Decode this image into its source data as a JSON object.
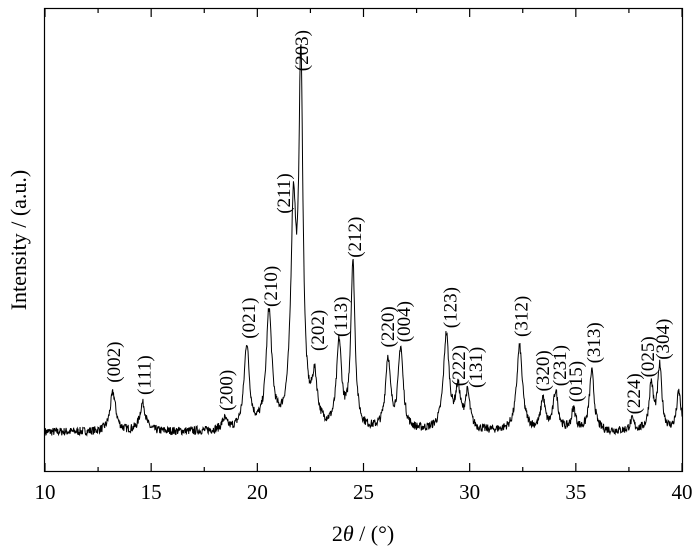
{
  "chart_data": {
    "type": "line",
    "title": "",
    "xlabel": {
      "prefix": "2",
      "symbol": "θ",
      "suffix": " / (°)"
    },
    "ylabel": "Intensity / (a.u.)",
    "xlim": [
      10,
      40
    ],
    "ylim": [
      0,
      100
    ],
    "y_ticks_labeled": false,
    "grid": false,
    "legend": "none",
    "x_ticks": [
      10,
      15,
      20,
      25,
      30,
      35,
      40
    ],
    "line_color": "#000000",
    "series": [
      {
        "peaks": [
          {
            "x": 13.2,
            "h": 11.0,
            "w": 0.16
          },
          {
            "x": 14.6,
            "h": 8.0,
            "w": 0.16
          },
          {
            "x": 18.45,
            "h": 3.0,
            "w": 0.14
          },
          {
            "x": 19.5,
            "h": 24.0,
            "w": 0.15
          },
          {
            "x": 20.55,
            "h": 33.0,
            "w": 0.16
          },
          {
            "x": 21.7,
            "h": 59.0,
            "w": 0.15
          },
          {
            "x": 22.05,
            "h": 100.0,
            "w": 0.12
          },
          {
            "x": 22.7,
            "h": 13.0,
            "w": 0.15
          },
          {
            "x": 23.85,
            "h": 24.0,
            "w": 0.14
          },
          {
            "x": 24.5,
            "h": 47.0,
            "w": 0.12
          },
          {
            "x": 26.15,
            "h": 20.0,
            "w": 0.14
          },
          {
            "x": 26.75,
            "h": 23.0,
            "w": 0.14
          },
          {
            "x": 28.9,
            "h": 27.0,
            "w": 0.16
          },
          {
            "x": 29.45,
            "h": 11.0,
            "w": 0.14
          },
          {
            "x": 29.9,
            "h": 10.0,
            "w": 0.14
          },
          {
            "x": 32.35,
            "h": 24.0,
            "w": 0.16
          },
          {
            "x": 33.45,
            "h": 9.0,
            "w": 0.12
          },
          {
            "x": 34.05,
            "h": 11.0,
            "w": 0.14
          },
          {
            "x": 34.9,
            "h": 6.0,
            "w": 0.12
          },
          {
            "x": 35.75,
            "h": 17.0,
            "w": 0.13
          },
          {
            "x": 37.65,
            "h": 3.0,
            "w": 0.12
          },
          {
            "x": 38.55,
            "h": 13.0,
            "w": 0.12
          },
          {
            "x": 38.95,
            "h": 18.0,
            "w": 0.12
          },
          {
            "x": 39.85,
            "h": 11.0,
            "w": 0.12
          }
        ],
        "baseline": 0,
        "noise": 1.2
      }
    ],
    "annotations": [
      {
        "text": "(002)",
        "x": 13.2,
        "y": 14.0
      },
      {
        "text": "(111)",
        "x": 14.65,
        "y": 10.5
      },
      {
        "text": "(200)",
        "x": 18.5,
        "y": 6.0
      },
      {
        "text": "(021)",
        "x": 19.55,
        "y": 26.5
      },
      {
        "text": "(210)",
        "x": 20.6,
        "y": 35.5
      },
      {
        "text": "(211)",
        "x": 21.2,
        "y": 62.0
      },
      {
        "text": "(203)",
        "x": 22.05,
        "y": 102.5
      },
      {
        "text": "(202)",
        "x": 22.8,
        "y": 23.0
      },
      {
        "text": "(113)",
        "x": 23.9,
        "y": 27.0
      },
      {
        "text": "(212)",
        "x": 24.55,
        "y": 49.5
      },
      {
        "text": "(220)",
        "x": 26.1,
        "y": 24.0
      },
      {
        "text": "(004)",
        "x": 26.85,
        "y": 25.5
      },
      {
        "text": "(123)",
        "x": 29.05,
        "y": 29.5
      },
      {
        "text": "(222)",
        "x": 29.45,
        "y": 13.0
      },
      {
        "text": "(131)",
        "x": 30.25,
        "y": 12.5
      },
      {
        "text": "(312)",
        "x": 32.4,
        "y": 27.0
      },
      {
        "text": "(320)",
        "x": 33.4,
        "y": 11.5
      },
      {
        "text": "(231)",
        "x": 34.2,
        "y": 13.0
      },
      {
        "text": "(015)",
        "x": 34.95,
        "y": 8.5
      },
      {
        "text": "(313)",
        "x": 35.8,
        "y": 19.5
      },
      {
        "text": "(224)",
        "x": 37.7,
        "y": 5.0
      },
      {
        "text": "(025)",
        "x": 38.35,
        "y": 15.5
      },
      {
        "text": "(304)",
        "x": 39.05,
        "y": 20.5
      }
    ]
  }
}
